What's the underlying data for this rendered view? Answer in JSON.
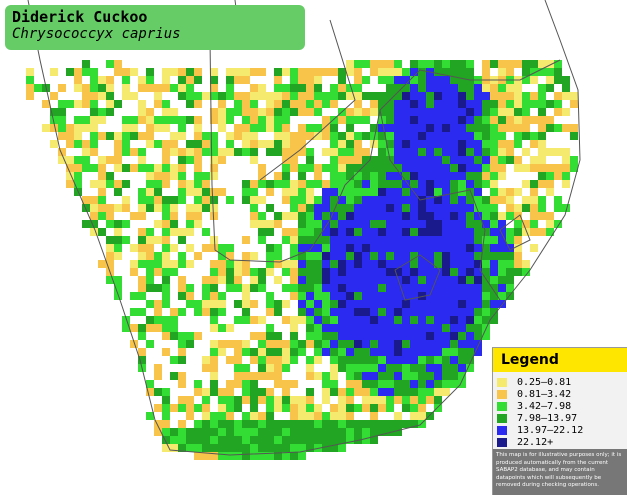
{
  "header": {
    "title": "Diderick Cuckoo",
    "subtitle": "Chrysococcyx caprius"
  },
  "legend": {
    "title": "Legend",
    "items": [
      {
        "label": "0.25–0.81",
        "color": "#f5ea6e"
      },
      {
        "label": "0.81–3.42",
        "color": "#f8c44a"
      },
      {
        "label": "3.42–7.98",
        "color": "#33dd33"
      },
      {
        "label": "7.98–13.97",
        "color": "#22a522"
      },
      {
        "label": "13.97–22.12",
        "color": "#2a2af0"
      },
      {
        "label": "22.12+",
        "color": "#1a1a8c"
      }
    ],
    "disclaimer": "This map is for illustrative purposes only; it is produced automatically from the current SABAP2 database, and may contain datapoints which will subsequently be removed during checking operations."
  }
}
